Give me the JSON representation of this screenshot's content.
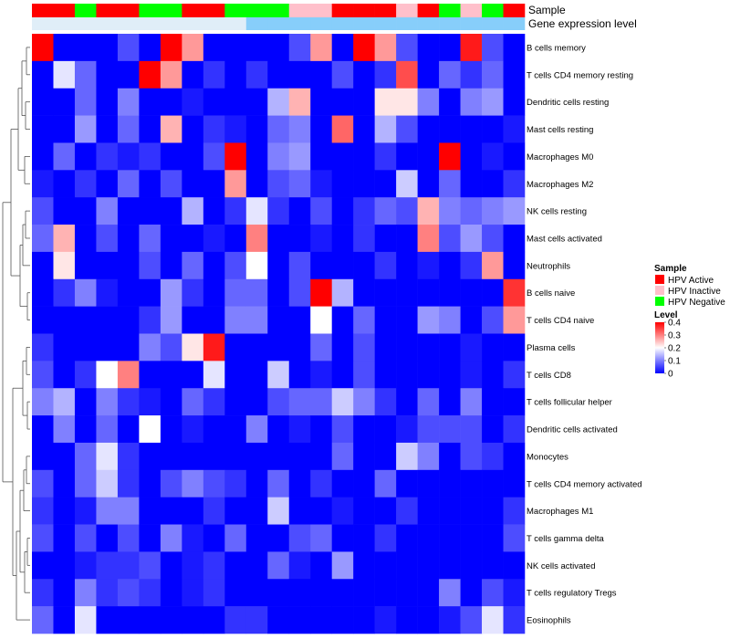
{
  "chart_data": {
    "type": "heatmap",
    "title": "",
    "xlabel": "",
    "ylabel": "",
    "annotation_tracks": [
      {
        "name": "Sample",
        "values": [
          "HPV Active",
          "HPV Active",
          "HPV Negative",
          "HPV Active",
          "HPV Active",
          "HPV Negative",
          "HPV Negative",
          "HPV Active",
          "HPV Active",
          "HPV Negative",
          "HPV Negative",
          "HPV Negative",
          "HPV Inactive",
          "HPV Inactive",
          "HPV Active",
          "HPV Active",
          "HPV Active",
          "HPV Inactive",
          "HPV Active",
          "HPV Negative",
          "HPV Inactive",
          "HPV Negative",
          "HPV Active"
        ]
      },
      {
        "name": "Gene expression level",
        "values": [
          "Inactive",
          "Inactive",
          "Inactive",
          "Inactive",
          "Inactive",
          "Inactive",
          "Inactive",
          "Inactive",
          "Inactive",
          "Inactive",
          "Active",
          "Active",
          "Active",
          "Active",
          "Active",
          "Active",
          "Active",
          "Active",
          "Active",
          "Active",
          "Active",
          "Active",
          "Active"
        ]
      }
    ],
    "rows": [
      "B cells memory",
      "T cells CD4 memory resting",
      "Dendritic cells resting",
      "Mast cells resting",
      "Macrophages M0",
      "Macrophages M2",
      "NK cells resting",
      "Mast cells activated",
      "Neutrophils",
      "B cells naive",
      "T cells CD4 naive",
      "Plasma cells",
      "T cells CD8",
      "T cells follicular helper",
      "Dendritic cells activated",
      "Monocytes",
      "T cells CD4 memory activated",
      "Macrophages M1",
      "T cells gamma delta",
      "NK cells activated",
      "T cells regulatory  Tregs",
      "Eosinophils"
    ],
    "values": [
      [
        0.4,
        0.0,
        0.0,
        0.0,
        0.06,
        0.0,
        0.4,
        0.28,
        0.0,
        0.0,
        0.0,
        0.0,
        0.06,
        0.28,
        0.0,
        0.4,
        0.28,
        0.06,
        0.0,
        0.0,
        0.38,
        0.06,
        0.0
      ],
      [
        0.0,
        0.18,
        0.08,
        0.0,
        0.0,
        0.4,
        0.28,
        0.0,
        0.04,
        0.0,
        0.04,
        0.0,
        0.0,
        0.0,
        0.06,
        0.0,
        0.04,
        0.34,
        0.0,
        0.08,
        0.04,
        0.08,
        0.0
      ],
      [
        0.0,
        0.0,
        0.08,
        0.0,
        0.1,
        0.0,
        0.0,
        0.02,
        0.0,
        0.0,
        0.0,
        0.14,
        0.26,
        0.0,
        0.0,
        0.0,
        0.22,
        0.22,
        0.1,
        0.0,
        0.1,
        0.12,
        0.0
      ],
      [
        0.0,
        0.0,
        0.12,
        0.0,
        0.08,
        0.0,
        0.26,
        0.0,
        0.04,
        0.02,
        0.0,
        0.08,
        0.1,
        0.0,
        0.32,
        0.0,
        0.14,
        0.06,
        0.0,
        0.0,
        0.0,
        0.0,
        0.02
      ],
      [
        0.0,
        0.08,
        0.0,
        0.04,
        0.02,
        0.04,
        0.0,
        0.0,
        0.06,
        0.4,
        0.0,
        0.1,
        0.12,
        0.0,
        0.0,
        0.0,
        0.04,
        0.0,
        0.0,
        0.4,
        0.0,
        0.02,
        0.0
      ],
      [
        0.02,
        0.0,
        0.04,
        0.0,
        0.08,
        0.0,
        0.06,
        0.0,
        0.0,
        0.28,
        0.0,
        0.06,
        0.08,
        0.02,
        0.0,
        0.0,
        0.0,
        0.16,
        0.0,
        0.08,
        0.0,
        0.0,
        0.04
      ],
      [
        0.06,
        0.0,
        0.0,
        0.1,
        0.0,
        0.0,
        0.0,
        0.14,
        0.0,
        0.04,
        0.18,
        0.04,
        0.0,
        0.06,
        0.0,
        0.04,
        0.08,
        0.06,
        0.26,
        0.1,
        0.08,
        0.1,
        0.12
      ],
      [
        0.08,
        0.26,
        0.0,
        0.06,
        0.0,
        0.08,
        0.0,
        0.0,
        0.02,
        0.0,
        0.3,
        0.0,
        0.0,
        0.02,
        0.0,
        0.04,
        0.0,
        0.0,
        0.3,
        0.06,
        0.12,
        0.06,
        0.0
      ],
      [
        0.0,
        0.22,
        0.0,
        0.0,
        0.0,
        0.06,
        0.0,
        0.08,
        0.0,
        0.06,
        0.2,
        0.0,
        0.06,
        0.0,
        0.0,
        0.0,
        0.04,
        0.0,
        0.02,
        0.0,
        0.04,
        0.28,
        0.0
      ],
      [
        0.0,
        0.04,
        0.1,
        0.02,
        0.0,
        0.0,
        0.12,
        0.04,
        0.0,
        0.08,
        0.08,
        0.0,
        0.06,
        0.4,
        0.14,
        0.0,
        0.0,
        0.0,
        0.0,
        0.0,
        0.0,
        0.0,
        0.36
      ],
      [
        0.0,
        0.0,
        0.0,
        0.0,
        0.0,
        0.04,
        0.12,
        0.0,
        0.0,
        0.1,
        0.1,
        0.0,
        0.0,
        0.2,
        0.0,
        0.08,
        0.0,
        0.0,
        0.12,
        0.1,
        0.0,
        0.06,
        0.28
      ],
      [
        0.04,
        0.0,
        0.0,
        0.0,
        0.0,
        0.1,
        0.06,
        0.22,
        0.38,
        0.0,
        0.0,
        0.0,
        0.0,
        0.08,
        0.0,
        0.06,
        0.0,
        0.0,
        0.0,
        0.0,
        0.02,
        0.0,
        0.0
      ],
      [
        0.06,
        0.0,
        0.04,
        0.2,
        0.3,
        0.0,
        0.0,
        0.0,
        0.18,
        0.0,
        0.0,
        0.16,
        0.0,
        0.02,
        0.0,
        0.06,
        0.0,
        0.0,
        0.0,
        0.0,
        0.02,
        0.0,
        0.04
      ],
      [
        0.1,
        0.14,
        0.0,
        0.1,
        0.04,
        0.02,
        0.0,
        0.08,
        0.04,
        0.0,
        0.0,
        0.06,
        0.08,
        0.08,
        0.16,
        0.1,
        0.04,
        0.0,
        0.08,
        0.0,
        0.1,
        0.0,
        0.0
      ],
      [
        0.0,
        0.1,
        0.0,
        0.08,
        0.0,
        0.2,
        0.0,
        0.02,
        0.0,
        0.0,
        0.1,
        0.0,
        0.02,
        0.0,
        0.06,
        0.0,
        0.0,
        0.02,
        0.06,
        0.06,
        0.06,
        0.0,
        0.04
      ],
      [
        0.0,
        0.0,
        0.08,
        0.18,
        0.04,
        0.0,
        0.0,
        0.0,
        0.0,
        0.0,
        0.0,
        0.0,
        0.0,
        0.0,
        0.08,
        0.0,
        0.0,
        0.16,
        0.1,
        0.0,
        0.06,
        0.04,
        0.0
      ],
      [
        0.06,
        0.0,
        0.08,
        0.16,
        0.04,
        0.0,
        0.06,
        0.1,
        0.06,
        0.04,
        0.0,
        0.08,
        0.0,
        0.04,
        0.0,
        0.0,
        0.08,
        0.0,
        0.0,
        0.0,
        0.0,
        0.0,
        0.0
      ],
      [
        0.04,
        0.0,
        0.02,
        0.1,
        0.1,
        0.0,
        0.0,
        0.0,
        0.04,
        0.0,
        0.0,
        0.16,
        0.0,
        0.0,
        0.02,
        0.0,
        0.0,
        0.04,
        0.0,
        0.0,
        0.0,
        0.0,
        0.04
      ],
      [
        0.06,
        0.0,
        0.06,
        0.0,
        0.06,
        0.0,
        0.1,
        0.02,
        0.0,
        0.08,
        0.0,
        0.0,
        0.06,
        0.08,
        0.0,
        0.0,
        0.04,
        0.0,
        0.0,
        0.0,
        0.0,
        0.0,
        0.06
      ],
      [
        0.0,
        0.0,
        0.02,
        0.04,
        0.04,
        0.06,
        0.0,
        0.02,
        0.04,
        0.0,
        0.0,
        0.08,
        0.02,
        0.0,
        0.12,
        0.0,
        0.0,
        0.0,
        0.0,
        0.0,
        0.0,
        0.0,
        0.0
      ],
      [
        0.04,
        0.0,
        0.1,
        0.04,
        0.06,
        0.04,
        0.0,
        0.02,
        0.04,
        0.0,
        0.0,
        0.0,
        0.0,
        0.0,
        0.0,
        0.0,
        0.0,
        0.0,
        0.0,
        0.1,
        0.0,
        0.06,
        0.02
      ],
      [
        0.08,
        0.0,
        0.18,
        0.0,
        0.0,
        0.0,
        0.0,
        0.0,
        0.0,
        0.04,
        0.04,
        0.0,
        0.0,
        0.0,
        0.0,
        0.0,
        0.02,
        0.0,
        0.0,
        0.02,
        0.06,
        0.18,
        0.04
      ]
    ],
    "color_scale": {
      "min": 0,
      "max": 0.4,
      "colors": [
        "#0000ff",
        "#ffffff",
        "#ff0000"
      ]
    },
    "legend": {
      "position": "right",
      "sample_title": "Sample",
      "sample_entries": [
        {
          "label": "HPV Active",
          "color": "#ff0000"
        },
        {
          "label": "HPV Inactive",
          "color": "#ffc0cb"
        },
        {
          "label": "HPV Negative",
          "color": "#00ff00"
        }
      ],
      "level_title": "Level",
      "level_ticks": [
        {
          "value": 0.4,
          "label": "0.4"
        },
        {
          "value": 0.3,
          "label": "0.3"
        },
        {
          "value": 0.2,
          "label": "0.2"
        },
        {
          "value": 0.1,
          "label": "0.1"
        },
        {
          "value": 0,
          "label": "0"
        }
      ]
    },
    "track_colors": {
      "HPV Active": "#ff0000",
      "HPV Inactive": "#ffc0cb",
      "HPV Negative": "#00ff00",
      "Inactive": "#e0eef8",
      "Active": "#87cefa"
    },
    "dendrogram": "rows"
  }
}
